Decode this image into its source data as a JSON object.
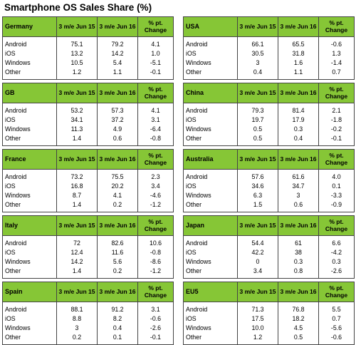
{
  "page": {
    "title": "Smartphone OS Sales Share (%)"
  },
  "chart_data": {
    "type": "table",
    "title": "Smartphone OS Sales Share (%)",
    "columns": [
      "3 m/e Jun 15",
      "3 m/e Jun 16",
      "% pt. Change"
    ],
    "regions": [
      {
        "name": "Germany",
        "rows": [
          {
            "os": "Android",
            "v15": "75.1",
            "v16": "79.2",
            "chg": "4.1"
          },
          {
            "os": "iOS",
            "v15": "13.2",
            "v16": "14.2",
            "chg": "1.0"
          },
          {
            "os": "Windows",
            "v15": "10.5",
            "v16": "5.4",
            "chg": "-5.1"
          },
          {
            "os": "Other",
            "v15": "1.2",
            "v16": "1.1",
            "chg": "-0.1"
          }
        ]
      },
      {
        "name": "USA",
        "rows": [
          {
            "os": "Android",
            "v15": "66.1",
            "v16": "65.5",
            "chg": "-0.6"
          },
          {
            "os": "iOS",
            "v15": "30.5",
            "v16": "31.8",
            "chg": "1.3"
          },
          {
            "os": "Windows",
            "v15": "3",
            "v16": "1.6",
            "chg": "-1.4"
          },
          {
            "os": "Other",
            "v15": "0.4",
            "v16": "1.1",
            "chg": "0.7"
          }
        ]
      },
      {
        "name": "GB",
        "rows": [
          {
            "os": "Android",
            "v15": "53.2",
            "v16": "57.3",
            "chg": "4.1"
          },
          {
            "os": "iOS",
            "v15": "34.1",
            "v16": "37.2",
            "chg": "3.1"
          },
          {
            "os": "Windows",
            "v15": "11.3",
            "v16": "4.9",
            "chg": "-6.4"
          },
          {
            "os": "Other",
            "v15": "1.4",
            "v16": "0.6",
            "chg": "-0.8"
          }
        ]
      },
      {
        "name": "China",
        "rows": [
          {
            "os": "Android",
            "v15": "79.3",
            "v16": "81.4",
            "chg": "2.1"
          },
          {
            "os": "iOS",
            "v15": "19.7",
            "v16": "17.9",
            "chg": "-1.8"
          },
          {
            "os": "Windows",
            "v15": "0.5",
            "v16": "0.3",
            "chg": "-0.2"
          },
          {
            "os": "Other",
            "v15": "0.5",
            "v16": "0.4",
            "chg": "-0.1"
          }
        ]
      },
      {
        "name": "France",
        "rows": [
          {
            "os": "Android",
            "v15": "73.2",
            "v16": "75.5",
            "chg": "2.3"
          },
          {
            "os": "iOS",
            "v15": "16.8",
            "v16": "20.2",
            "chg": "3.4"
          },
          {
            "os": "Windows",
            "v15": "8.7",
            "v16": "4.1",
            "chg": "-4.6"
          },
          {
            "os": "Other",
            "v15": "1.4",
            "v16": "0.2",
            "chg": "-1.2"
          }
        ]
      },
      {
        "name": "Australia",
        "rows": [
          {
            "os": "Android",
            "v15": "57.6",
            "v16": "61.6",
            "chg": "4.0"
          },
          {
            "os": "iOS",
            "v15": "34.6",
            "v16": "34.7",
            "chg": "0.1"
          },
          {
            "os": "Windows",
            "v15": "6.3",
            "v16": "3",
            "chg": "-3.3"
          },
          {
            "os": "Other",
            "v15": "1.5",
            "v16": "0.6",
            "chg": "-0.9"
          }
        ]
      },
      {
        "name": "Italy",
        "rows": [
          {
            "os": "Android",
            "v15": "72",
            "v16": "82.6",
            "chg": "10.6"
          },
          {
            "os": "iOS",
            "v15": "12.4",
            "v16": "11.6",
            "chg": "-0.8"
          },
          {
            "os": "Windows",
            "v15": "14.2",
            "v16": "5.6",
            "chg": "-8.6"
          },
          {
            "os": "Other",
            "v15": "1.4",
            "v16": "0.2",
            "chg": "-1.2"
          }
        ]
      },
      {
        "name": "Japan",
        "rows": [
          {
            "os": "Android",
            "v15": "54.4",
            "v16": "61",
            "chg": "6.6"
          },
          {
            "os": "iOS",
            "v15": "42.2",
            "v16": "38",
            "chg": "-4.2"
          },
          {
            "os": "Windows",
            "v15": "0",
            "v16": "0.3",
            "chg": "0.3"
          },
          {
            "os": "Other",
            "v15": "3.4",
            "v16": "0.8",
            "chg": "-2.6"
          }
        ]
      },
      {
        "name": "Spain",
        "rows": [
          {
            "os": "Android",
            "v15": "88.1",
            "v16": "91.2",
            "chg": "3.1"
          },
          {
            "os": "iOS",
            "v15": "8.8",
            "v16": "8.2",
            "chg": "-0.6"
          },
          {
            "os": "Windows",
            "v15": "3",
            "v16": "0.4",
            "chg": "-2.6"
          },
          {
            "os": "Other",
            "v15": "0.2",
            "v16": "0.1",
            "chg": "-0.1"
          }
        ]
      },
      {
        "name": "EU5",
        "rows": [
          {
            "os": "Android",
            "v15": "71.3",
            "v16": "76.8",
            "chg": "5.5"
          },
          {
            "os": "iOS",
            "v15": "17.5",
            "v16": "18.2",
            "chg": "0.7"
          },
          {
            "os": "Windows",
            "v15": "10.0",
            "v16": "4.5",
            "chg": "-5.6"
          },
          {
            "os": "Other",
            "v15": "1.2",
            "v16": "0.5",
            "chg": "-0.6"
          }
        ]
      }
    ]
  },
  "colors": {
    "header_bg": "#86c636",
    "border": "#444444",
    "text": "#000000"
  }
}
